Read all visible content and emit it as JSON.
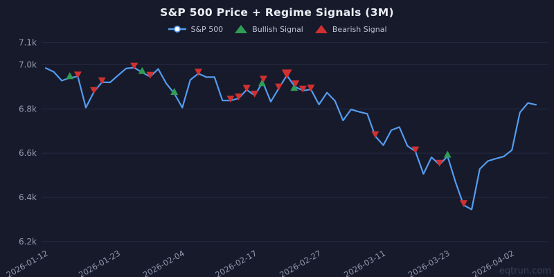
{
  "title": "S&P 500 Price + Regime Signals (3M)",
  "watermark": "eqtrun.com",
  "legend": {
    "items": [
      {
        "label": "S&P 500",
        "marker": "line-circle"
      },
      {
        "label": "Bullish Signal",
        "marker": "triangle-up"
      },
      {
        "label": "Bearish Signal",
        "marker": "triangle-up"
      }
    ]
  },
  "colors": {
    "background": "#171a2b",
    "grid": "#242a41",
    "tick_text": "#949aae",
    "title_text": "#eceef4",
    "legend_text": "#bdc2d0",
    "line": "#549cf0",
    "bullish": "#2f9e54",
    "bearish": "#d03030",
    "watermark": "#3b4156"
  },
  "chart_data": {
    "type": "line",
    "title": "S&P 500 Price + Regime Signals (3M)",
    "grid": "horizontal-only",
    "legend_position": "top-center",
    "x_axis": {
      "tick_angle": -30,
      "ticks": [
        {
          "index": 0,
          "label": "2026-01-12"
        },
        {
          "index": 9,
          "label": "2026-01-23"
        },
        {
          "index": 17,
          "label": "2026-02-04"
        },
        {
          "index": 26,
          "label": "2026-02-17"
        },
        {
          "index": 34,
          "label": "2026-02-27"
        },
        {
          "index": 42,
          "label": "2026-03-11"
        },
        {
          "index": 50,
          "label": "2026-03-23"
        },
        {
          "index": 58,
          "label": "2026-04-02"
        }
      ]
    },
    "y_axis": {
      "range": [
        6190,
        7130
      ],
      "ticks": [
        {
          "value": 6200,
          "label": "6.2k"
        },
        {
          "value": 6400,
          "label": "6.4k"
        },
        {
          "value": 6600,
          "label": "6.6k"
        },
        {
          "value": 6800,
          "label": "6.8k"
        },
        {
          "value": 7000,
          "label": "7.0k"
        },
        {
          "value": 7100,
          "label": "7.1k"
        }
      ]
    },
    "series": [
      {
        "name": "S&P 500",
        "values": [
          6985,
          6968,
          6928,
          6941,
          6947,
          6806,
          6877,
          6921,
          6920,
          6952,
          6983,
          6987,
          6965,
          6946,
          6981,
          6915,
          6870,
          6806,
          6932,
          6960,
          6944,
          6944,
          6838,
          6838,
          6848,
          6887,
          6861,
          6922,
          6833,
          6893,
          6952,
          6901,
          6883,
          6888,
          6820,
          6874,
          6836,
          6748,
          6798,
          6787,
          6778,
          6677,
          6636,
          6704,
          6718,
          6633,
          6608,
          6506,
          6581,
          6548,
          6586,
          6468,
          6365,
          6345,
          6528,
          6564,
          6575,
          6585,
          6614,
          6784,
          6827,
          6819
        ]
      }
    ],
    "signals": [
      {
        "index": 3,
        "type": "bullish"
      },
      {
        "index": 4,
        "type": "bearish"
      },
      {
        "index": 6,
        "type": "bearish"
      },
      {
        "index": 7,
        "type": "bearish"
      },
      {
        "index": 11,
        "type": "bearish"
      },
      {
        "index": 12,
        "type": "bullish"
      },
      {
        "index": 13,
        "type": "bearish"
      },
      {
        "index": 16,
        "type": "bullish"
      },
      {
        "index": 19,
        "type": "bearish"
      },
      {
        "index": 23,
        "type": "bearish"
      },
      {
        "index": 24,
        "type": "bearish"
      },
      {
        "index": 25,
        "type": "bearish"
      },
      {
        "index": 26,
        "type": "bearish"
      },
      {
        "index": 27,
        "type": "bullish"
      },
      {
        "index": 27,
        "type": "bearish"
      },
      {
        "index": 29,
        "type": "bearish"
      },
      {
        "index": 30,
        "type": "bearish",
        "size": "large"
      },
      {
        "index": 31,
        "type": "bullish"
      },
      {
        "index": 31,
        "type": "bearish"
      },
      {
        "index": 32,
        "type": "bearish"
      },
      {
        "index": 33,
        "type": "bearish"
      },
      {
        "index": 41,
        "type": "bearish"
      },
      {
        "index": 46,
        "type": "bearish"
      },
      {
        "index": 49,
        "type": "bearish"
      },
      {
        "index": 50,
        "type": "bullish"
      },
      {
        "index": 52,
        "type": "bearish"
      }
    ]
  }
}
